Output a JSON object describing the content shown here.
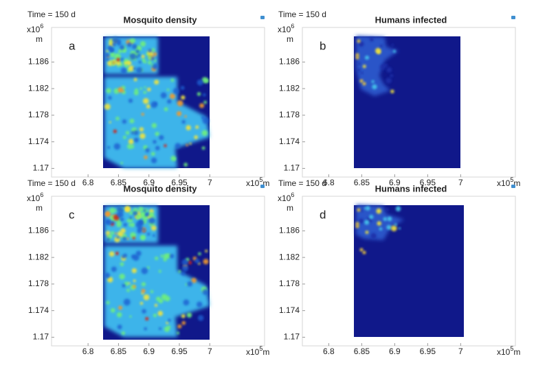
{
  "chart_data": [
    {
      "type": "heatmap",
      "time_label": "Time = 150 d",
      "title": "Mosquito density",
      "letter": "a",
      "x_unit_prefix": "x10",
      "x_unit_exp": "5",
      "x_unit": "m",
      "y_unit_prefix": "x10",
      "y_unit_exp": "6",
      "y_unit": "m",
      "xlim": [
        6.74,
        7.09
      ],
      "ylim": [
        1.1687,
        1.1912
      ],
      "xticks": [
        6.8,
        6.85,
        6.9,
        6.95,
        7
      ],
      "yticks": [
        1.17,
        1.174,
        1.178,
        1.182,
        1.186
      ]
    },
    {
      "type": "heatmap",
      "time_label": "Time = 150 d",
      "title": "Humans infected",
      "letter": "b",
      "x_unit_prefix": "x10",
      "x_unit_exp": "5",
      "x_unit": "m",
      "y_unit_prefix": "x10",
      "y_unit_exp": "6",
      "y_unit": "m",
      "xlim": [
        6.76,
        7.083
      ],
      "ylim": [
        1.1687,
        1.1912
      ],
      "xticks": [
        6.8,
        6.85,
        6.9,
        6.95,
        7
      ],
      "yticks": [
        1.17,
        1.174,
        1.178,
        1.182,
        1.186
      ]
    },
    {
      "type": "heatmap",
      "time_label": "Time = 150 d",
      "title": "Mosquito density",
      "letter": "c",
      "x_unit_prefix": "x10",
      "x_unit_exp": "5",
      "x_unit": "m",
      "y_unit_prefix": "x10",
      "y_unit_exp": "6",
      "y_unit": "m",
      "xlim": [
        6.74,
        7.09
      ],
      "ylim": [
        1.1687,
        1.1912
      ],
      "xticks": [
        6.8,
        6.85,
        6.9,
        6.95,
        7
      ],
      "yticks": [
        1.17,
        1.174,
        1.178,
        1.182,
        1.186
      ]
    },
    {
      "type": "heatmap",
      "time_label": "Time = 150 d",
      "title": "Humans infected",
      "letter": "d",
      "x_unit_prefix": "x10",
      "x_unit_exp": "5",
      "x_unit": "m",
      "y_unit_prefix": "x10",
      "y_unit_exp": "6",
      "y_unit": "m",
      "xlim": [
        6.76,
        7.083
      ],
      "ylim": [
        1.1687,
        1.1912
      ],
      "xticks": [
        6.8,
        6.85,
        6.9,
        6.95,
        7
      ],
      "yticks": [
        1.17,
        1.174,
        1.178,
        1.182,
        1.186
      ]
    }
  ]
}
